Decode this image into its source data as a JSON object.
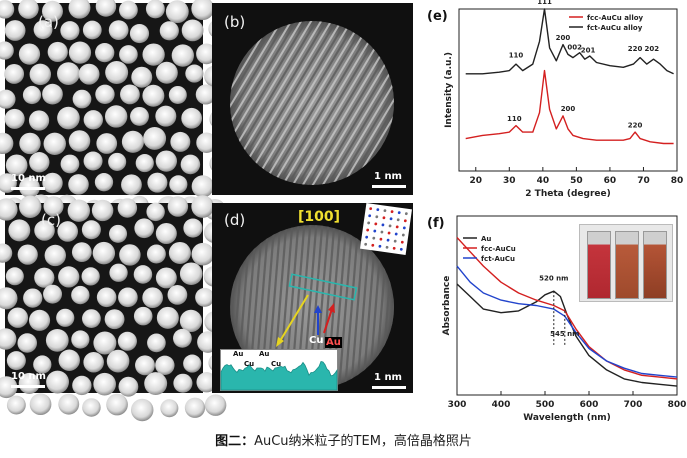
{
  "panels": {
    "a": {
      "label": "(a)",
      "scale": "10 nm"
    },
    "b": {
      "label": "(b)",
      "scale": "1 nm"
    },
    "c": {
      "label": "(c)",
      "scale": "10 nm"
    },
    "d": {
      "label": "(d)",
      "scale": "1 nm",
      "zone_axis": "[100]",
      "arrow_cu": "Cu",
      "arrow_au": "Au",
      "profile_labels": [
        "Au",
        "Au",
        "Cu",
        "Cu"
      ]
    },
    "e": {
      "label": "(e)"
    },
    "f": {
      "label": "(f)"
    }
  },
  "chart_data": [
    {
      "type": "line",
      "panel": "(e)",
      "title": "",
      "xlabel": "2 Theta (degree)",
      "ylabel": "Intensity (a.u.)",
      "xlim": [
        15,
        80
      ],
      "xticks": [
        "20",
        "30",
        "40",
        "50",
        "60",
        "70",
        "80"
      ],
      "legend": [
        "fcc-AuCu alloy",
        "fct-AuCu alloy"
      ],
      "legend_colors": [
        "#d42020",
        "#222222"
      ],
      "series": [
        {
          "name": "fct-AuCu alloy",
          "color": "#222222",
          "x": [
            17,
            22,
            27,
            30,
            32,
            34,
            37,
            39,
            40.5,
            42,
            44,
            46,
            47.5,
            49,
            51,
            52.5,
            54,
            56,
            60,
            64,
            67,
            69,
            71,
            73,
            75,
            77,
            79
          ],
          "y": [
            0.6,
            0.6,
            0.61,
            0.62,
            0.66,
            0.62,
            0.66,
            0.8,
            1.0,
            0.76,
            0.68,
            0.78,
            0.72,
            0.7,
            0.73,
            0.69,
            0.71,
            0.67,
            0.65,
            0.64,
            0.66,
            0.7,
            0.66,
            0.69,
            0.66,
            0.62,
            0.6
          ]
        },
        {
          "name": "fcc-AuCu alloy",
          "color": "#d42020",
          "x": [
            17,
            22,
            27,
            30,
            32,
            34,
            37,
            39,
            40.5,
            42,
            44,
            46,
            47.5,
            49,
            52,
            56,
            60,
            64,
            66,
            67.5,
            69,
            72,
            76,
            79
          ],
          "y": [
            0.2,
            0.22,
            0.23,
            0.24,
            0.28,
            0.24,
            0.24,
            0.36,
            0.62,
            0.38,
            0.26,
            0.34,
            0.26,
            0.22,
            0.2,
            0.19,
            0.19,
            0.19,
            0.2,
            0.24,
            0.2,
            0.18,
            0.17,
            0.17
          ]
        }
      ],
      "annotations": [
        {
          "text": "111",
          "x": 40.5,
          "y": 1.03
        },
        {
          "text": "110",
          "x": 32,
          "y": 0.7
        },
        {
          "text": "200",
          "x": 46,
          "y": 0.81
        },
        {
          "text": "002",
          "x": 49.5,
          "y": 0.75
        },
        {
          "text": "201",
          "x": 53.5,
          "y": 0.73
        },
        {
          "text": "220",
          "x": 67.5,
          "y": 0.74
        },
        {
          "text": "202",
          "x": 72.5,
          "y": 0.74
        },
        {
          "text": "110",
          "x": 31.5,
          "y": 0.31
        },
        {
          "text": "200",
          "x": 47.5,
          "y": 0.37
        },
        {
          "text": "220",
          "x": 67.5,
          "y": 0.27
        }
      ]
    },
    {
      "type": "line",
      "panel": "(f)",
      "title": "",
      "xlabel": "Wavelength (nm)",
      "ylabel": "Absorbance",
      "xlim": [
        300,
        800
      ],
      "xticks": [
        "300",
        "400",
        "500",
        "600",
        "700",
        "800"
      ],
      "legend": [
        "Au",
        "fcc-AuCu",
        "fct-AuCu"
      ],
      "legend_colors": [
        "#222222",
        "#d42020",
        "#2244cc"
      ],
      "series": [
        {
          "name": "Au",
          "color": "#222222",
          "x": [
            300,
            330,
            360,
            400,
            440,
            480,
            500,
            520,
            535,
            550,
            570,
            600,
            640,
            680,
            720,
            760,
            800
          ],
          "y": [
            0.62,
            0.55,
            0.48,
            0.46,
            0.47,
            0.52,
            0.56,
            0.58,
            0.55,
            0.45,
            0.33,
            0.22,
            0.14,
            0.09,
            0.07,
            0.06,
            0.05
          ]
        },
        {
          "name": "fcc-AuCu",
          "color": "#d42020",
          "x": [
            300,
            330,
            360,
            400,
            440,
            480,
            520,
            545,
            570,
            600,
            640,
            680,
            720,
            760,
            800
          ],
          "y": [
            0.88,
            0.8,
            0.72,
            0.63,
            0.57,
            0.53,
            0.5,
            0.47,
            0.37,
            0.27,
            0.19,
            0.14,
            0.11,
            0.1,
            0.09
          ]
        },
        {
          "name": "fct-AuCu",
          "color": "#2244cc",
          "x": [
            300,
            330,
            360,
            400,
            440,
            480,
            520,
            545,
            570,
            600,
            640,
            680,
            720,
            760,
            800
          ],
          "y": [
            0.72,
            0.63,
            0.57,
            0.53,
            0.51,
            0.5,
            0.48,
            0.44,
            0.35,
            0.26,
            0.19,
            0.15,
            0.12,
            0.11,
            0.1
          ]
        }
      ],
      "annotations": [
        {
          "text": "520 nm",
          "x": 520,
          "y": 0.64
        },
        {
          "text": "545 nm",
          "x": 545,
          "y": 0.33
        }
      ]
    }
  ],
  "caption": {
    "bold": "图二：",
    "text": "AuCu纳米粒子的TEM，高倍晶格照片"
  },
  "colors": {
    "red": "#d42020",
    "black": "#222222",
    "blue": "#2244cc",
    "teal": "#2ab6ad",
    "yellow": "#e6d420"
  }
}
